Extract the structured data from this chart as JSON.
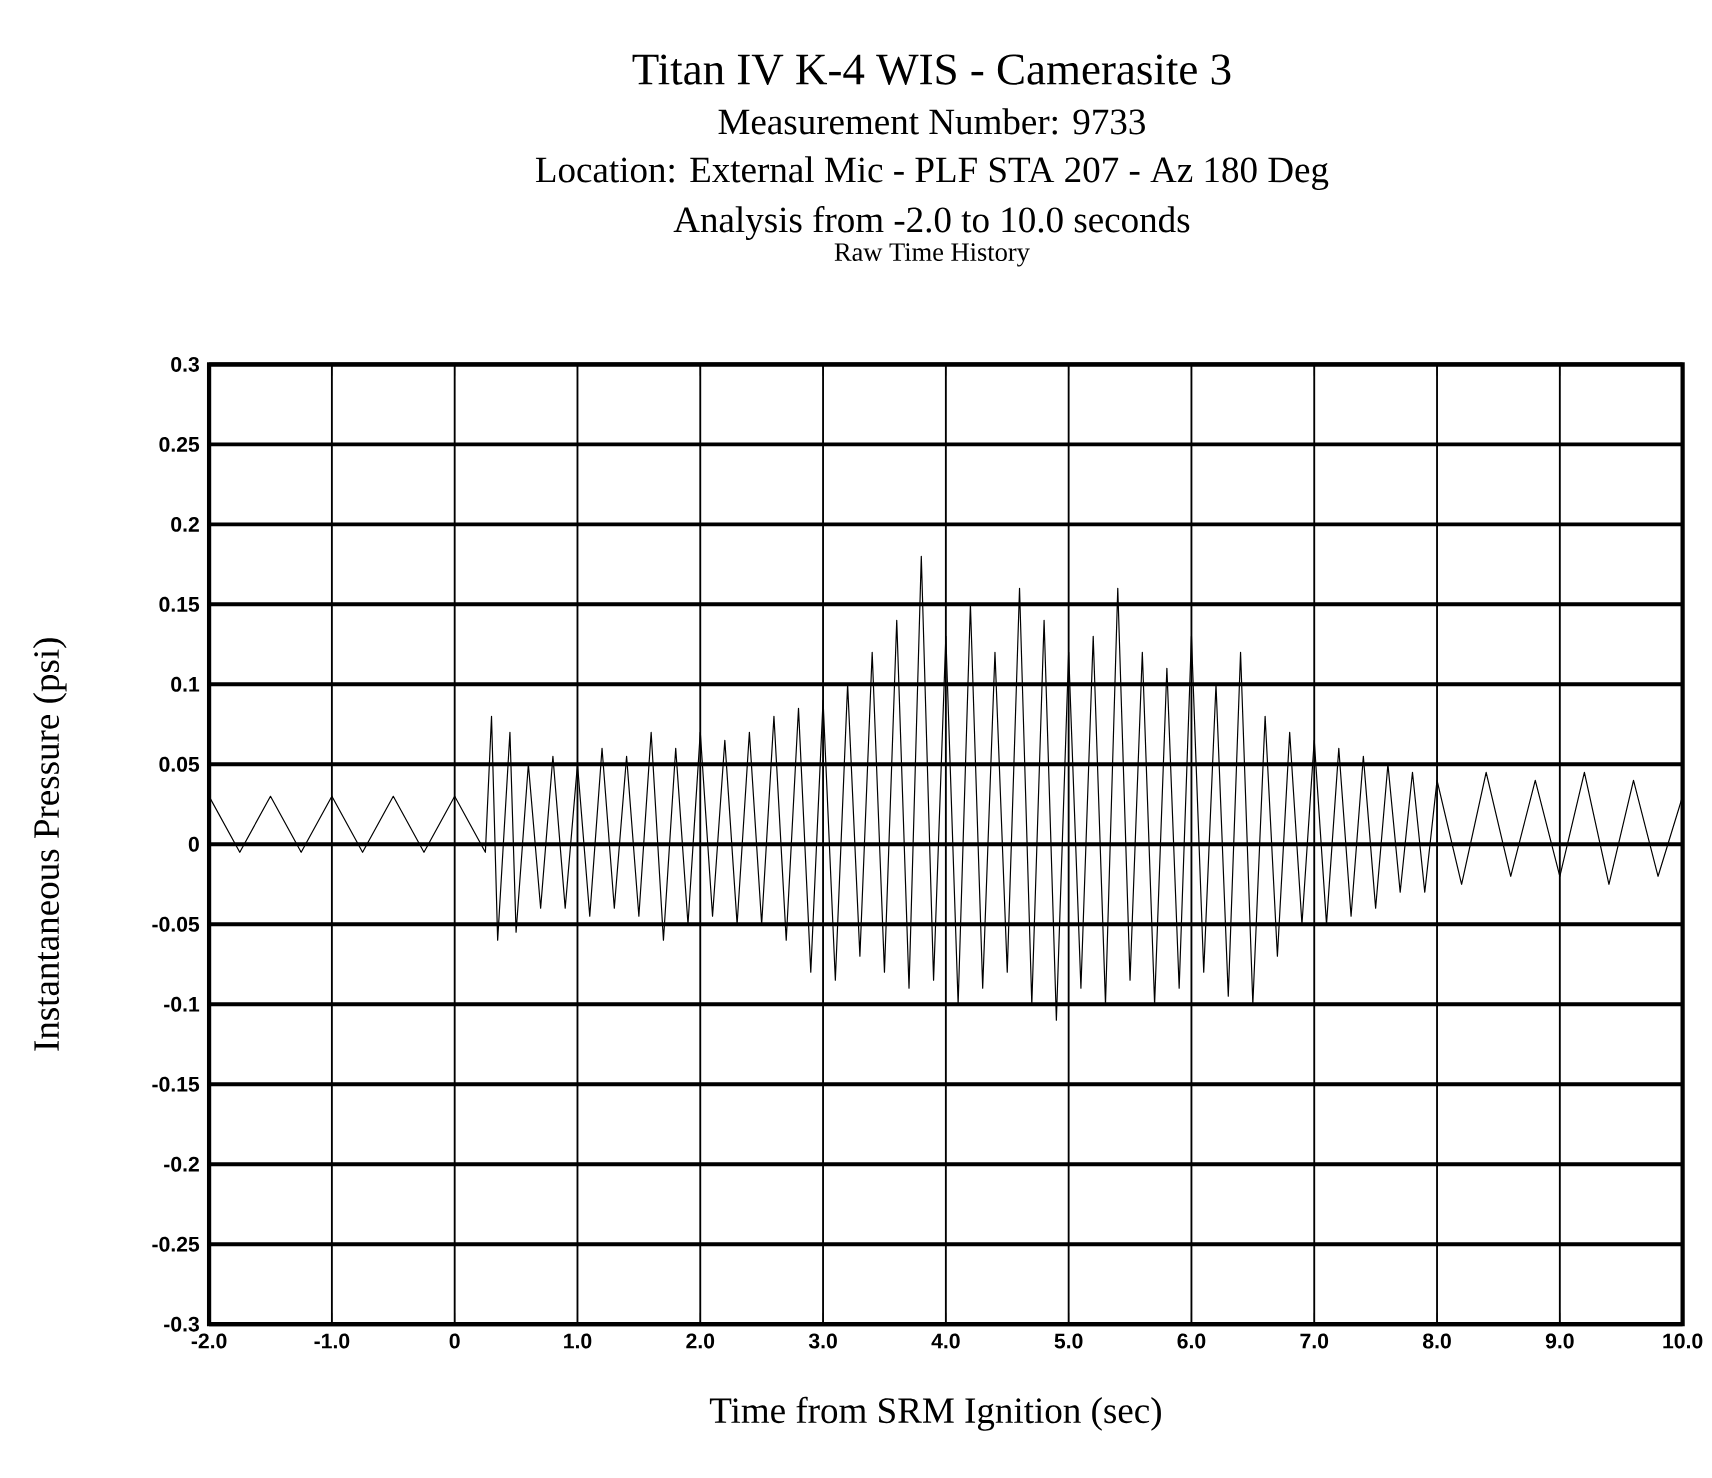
{
  "chart_data": {
    "type": "line",
    "title": "Titan IV K-4 WIS - Camerasite 3",
    "subtitle": "Measurement Number: 9733",
    "annotations": [
      "Location: External Mic - PLF STA 207 - Az 180 Deg",
      "Analysis from -2.0 to 10.0 seconds",
      "Raw Time History"
    ],
    "xlabel": "Time from SRM Ignition (sec)",
    "ylabel": "Instantaneous Pressure (psi)",
    "xlim": [
      -2,
      10
    ],
    "ylim": [
      -0.3,
      0.3
    ],
    "xticks": [
      {
        "value": -2,
        "label": "-2.0"
      },
      {
        "value": -1,
        "label": "-1.0"
      },
      0,
      {
        "value": 1,
        "label": "1.0"
      },
      {
        "value": 2,
        "label": "2.0"
      },
      {
        "value": 3,
        "label": "3.0"
      },
      {
        "value": 4,
        "label": "4.0"
      },
      {
        "value": 5,
        "label": "5.0"
      },
      {
        "value": 6,
        "label": "6.0"
      },
      {
        "value": 7,
        "label": "7.0"
      },
      {
        "value": 8,
        "label": "8.0"
      },
      {
        "value": 9,
        "label": "9.0"
      },
      {
        "value": 10,
        "label": "10.0"
      }
    ],
    "yticks": [
      -0.3,
      -0.25,
      -0.2,
      -0.15,
      -0.1,
      -0.05,
      0,
      0.05,
      0.1,
      0.15,
      0.2,
      0.25,
      0.3
    ],
    "grid": true,
    "series": [
      {
        "color": "#000000",
        "x": [
          -2.0,
          -1.75,
          -1.5,
          -1.25,
          -1.0,
          -0.75,
          -0.5,
          -0.25,
          0.0,
          0.25,
          0.3,
          0.35,
          0.45,
          0.5,
          0.6,
          0.7,
          0.8,
          0.9,
          1.0,
          1.1,
          1.2,
          1.3,
          1.4,
          1.5,
          1.6,
          1.7,
          1.8,
          1.9,
          2.0,
          2.1,
          2.2,
          2.3,
          2.4,
          2.5,
          2.6,
          2.7,
          2.8,
          2.9,
          3.0,
          3.1,
          3.2,
          3.3,
          3.4,
          3.5,
          3.6,
          3.7,
          3.8,
          3.9,
          4.0,
          4.1,
          4.2,
          4.3,
          4.4,
          4.5,
          4.6,
          4.7,
          4.8,
          4.9,
          5.0,
          5.1,
          5.2,
          5.3,
          5.4,
          5.5,
          5.6,
          5.7,
          5.8,
          5.9,
          6.0,
          6.1,
          6.2,
          6.3,
          6.4,
          6.5,
          6.6,
          6.7,
          6.8,
          6.9,
          7.0,
          7.1,
          7.2,
          7.3,
          7.4,
          7.5,
          7.6,
          7.7,
          7.8,
          7.9,
          8.0,
          8.2,
          8.4,
          8.6,
          8.8,
          9.0,
          9.2,
          9.4,
          9.6,
          9.8,
          10.0
        ],
        "values": [
          0.03,
          -0.005,
          0.03,
          -0.005,
          0.03,
          -0.005,
          0.03,
          -0.005,
          0.03,
          -0.005,
          0.08,
          -0.06,
          0.07,
          -0.055,
          0.05,
          -0.04,
          0.055,
          -0.04,
          0.05,
          -0.045,
          0.06,
          -0.04,
          0.055,
          -0.045,
          0.07,
          -0.06,
          0.06,
          -0.05,
          0.07,
          -0.045,
          0.065,
          -0.05,
          0.07,
          -0.05,
          0.08,
          -0.06,
          0.085,
          -0.08,
          0.09,
          -0.085,
          0.1,
          -0.07,
          0.12,
          -0.08,
          0.14,
          -0.09,
          0.18,
          -0.085,
          0.13,
          -0.1,
          0.15,
          -0.09,
          0.12,
          -0.08,
          0.16,
          -0.1,
          0.14,
          -0.11,
          0.12,
          -0.09,
          0.13,
          -0.1,
          0.16,
          -0.085,
          0.12,
          -0.1,
          0.11,
          -0.09,
          0.13,
          -0.08,
          0.1,
          -0.095,
          0.12,
          -0.1,
          0.08,
          -0.07,
          0.07,
          -0.05,
          0.065,
          -0.05,
          0.06,
          -0.045,
          0.055,
          -0.04,
          0.05,
          -0.03,
          0.045,
          -0.03,
          0.04,
          -0.025,
          0.045,
          -0.02,
          0.04,
          -0.02,
          0.045,
          -0.025,
          0.04,
          -0.02,
          0.03
        ]
      }
    ]
  }
}
